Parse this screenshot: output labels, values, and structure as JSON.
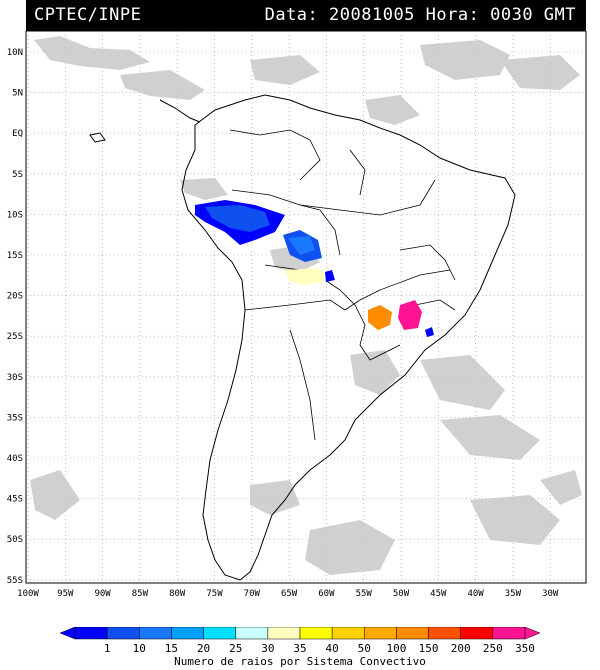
{
  "header": {
    "source": "CPTEC/INPE",
    "date_label": "Data:",
    "date": "20081005",
    "hour_label": "Hora:",
    "hour": "0030 GMT"
  },
  "axes": {
    "lat_labels": [
      "10N",
      "5N",
      "EQ",
      "5S",
      "10S",
      "15S",
      "20S",
      "25S",
      "30S",
      "35S",
      "40S",
      "45S",
      "50S",
      "55S"
    ],
    "lon_labels": [
      "100W",
      "95W",
      "90W",
      "85W",
      "80W",
      "75W",
      "70W",
      "65W",
      "60W",
      "55W",
      "50W",
      "45W",
      "40W",
      "35W",
      "30W"
    ]
  },
  "colorbar": {
    "labels": [
      "1",
      "10",
      "15",
      "20",
      "25",
      "30",
      "35",
      "40",
      "50",
      "100",
      "150",
      "200",
      "250",
      "350"
    ],
    "colors": [
      "#0000ff",
      "#1050f0",
      "#1a78ff",
      "#00a0ff",
      "#00e0ff",
      "#c8ffff",
      "#ffffc0",
      "#ffff00",
      "#ffd000",
      "#ffaa00",
      "#ff8c00",
      "#ff5000",
      "#ff0000",
      "#ff1493"
    ],
    "title": "Numero de raios por Sistema Convectivo"
  },
  "colors": {
    "cloud": "#c8c8c8",
    "land_border": "#000000",
    "grid": "#9a9a9a"
  }
}
